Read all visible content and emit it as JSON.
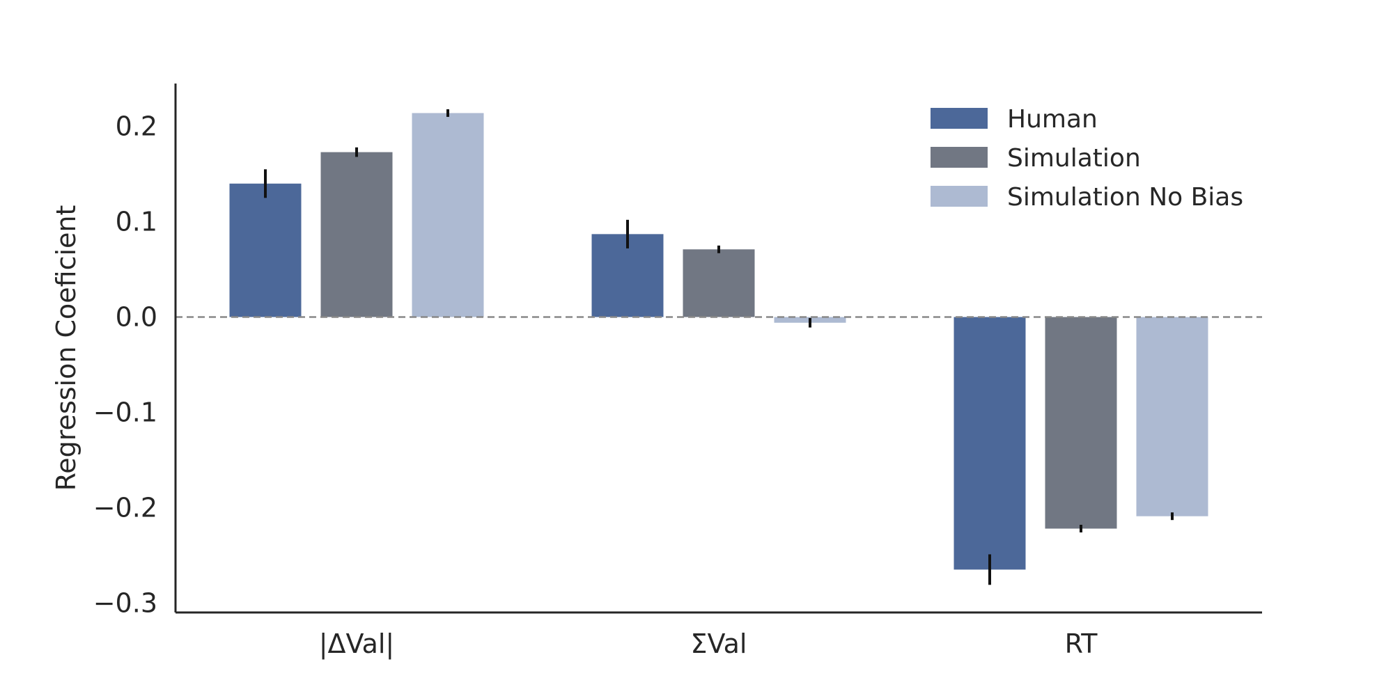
{
  "chart_data": {
    "type": "bar",
    "title": "",
    "xlabel": "",
    "ylabel": "Regression Coeficient",
    "categories": [
      "|ΔVal|",
      "ΣVal",
      "RT"
    ],
    "series": [
      {
        "name": "Human",
        "color": "#4c6899",
        "values": [
          0.14,
          0.087,
          -0.265
        ],
        "errors": [
          0.015,
          0.015,
          0.016
        ]
      },
      {
        "name": "Simulation",
        "color": "#717783",
        "values": [
          0.173,
          0.071,
          -0.222
        ],
        "errors": [
          0.005,
          0.004,
          0.004
        ]
      },
      {
        "name": "Simulation No Bias",
        "color": "#adbad2",
        "values": [
          0.214,
          -0.006,
          -0.209
        ],
        "errors": [
          0.004,
          0.005,
          0.004
        ]
      }
    ],
    "ylim": [
      -0.31,
      0.245
    ],
    "yticks": [
      0.2,
      0.1,
      0.0,
      -0.1,
      -0.2,
      -0.3
    ],
    "ytick_labels": [
      "0.2",
      "0.1",
      "0.0",
      "−0.1",
      "−0.2",
      "−0.3"
    ],
    "zero_line": "dashed",
    "grid": false,
    "legend_position": "top-right"
  }
}
